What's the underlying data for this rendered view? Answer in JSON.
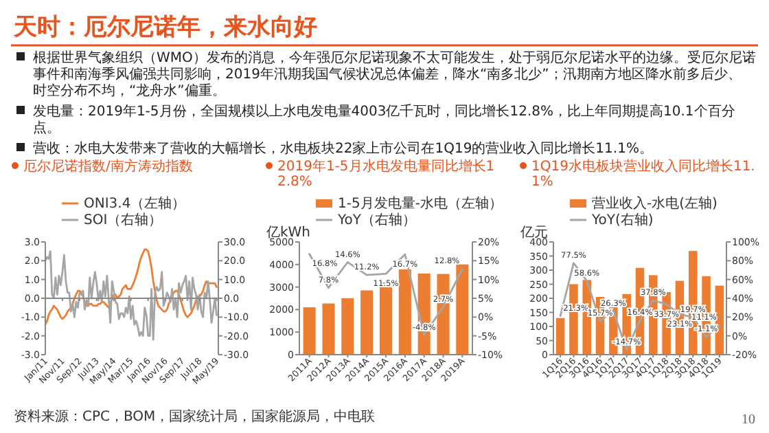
{
  "chart_data": [
    {
      "type": "other",
      "title": "天时：厄尔尼诺年，来水向好",
      "annotations": [
        "根据世界气象组织（WMO）发布的消息，今年强厄尔尼诺现象不太可能发生，处于弱厄尔尼诺水平的边缘。受厄尔尼诺事件和南海季风偏强共同影响，2019年汛期我国气候状况总体偏差，降水“南多北少”；汛期南方地区降水前多后少、时空分布不均，“龙舟水”偏重。",
        "发电量：2019年1-5月份，全国规模以上水电发电量4003亿千瓦时，同比增长12.8%，比上年同期提高10.1个百分点。",
        "营收：水电大发带来了营收的大幅增长，水电板块22家上市公司在1Q19的营业收入同比增长11.1%。",
        "10"
      ]
    },
    {
      "type": "line",
      "title": "厄尔尼诺指数/南方涛动指数",
      "legend": "top",
      "annotations": [
        "资料来源：CPC，BOM，国家统计局，国家能源局，中电联"
      ],
      "x": [
        "2011-01",
        "2011-02",
        "2011-03",
        "2011-04",
        "2011-05",
        "2011-06",
        "2011-07",
        "2011-08",
        "2011-09",
        "2011-10",
        "2011-11",
        "2011-12",
        "2012-01",
        "2012-02",
        "2012-03",
        "2012-04",
        "2012-05",
        "2012-06",
        "2012-07",
        "2012-08",
        "2012-09",
        "2012-10",
        "2012-11",
        "2012-12",
        "2013-01",
        "2013-02",
        "2013-03",
        "2013-04",
        "2013-05",
        "2013-06",
        "2013-07",
        "2013-08",
        "2013-09",
        "2013-10",
        "2013-11",
        "2013-12",
        "2014-01",
        "2014-02",
        "2014-03",
        "2014-04",
        "2014-05",
        "2014-06",
        "2014-07",
        "2014-08",
        "2014-09",
        "2014-10",
        "2014-11",
        "2014-12",
        "2015-01",
        "2015-02",
        "2015-03",
        "2015-04",
        "2015-05",
        "2015-06",
        "2015-07",
        "2015-08",
        "2015-09",
        "2015-10",
        "2015-11",
        "2015-12",
        "2016-01",
        "2016-02",
        "2016-03",
        "2016-04",
        "2016-05",
        "2016-06",
        "2016-07",
        "2016-08",
        "2016-09",
        "2016-10",
        "2016-11",
        "2016-12",
        "2017-01",
        "2017-02",
        "2017-03",
        "2017-04",
        "2017-05",
        "2017-06",
        "2017-07",
        "2017-08",
        "2017-09",
        "2017-10",
        "2017-11",
        "2017-12",
        "2018-01",
        "2018-02",
        "2018-03",
        "2018-04",
        "2018-05",
        "2018-06",
        "2018-07",
        "2018-08",
        "2018-09",
        "2018-10",
        "2018-11",
        "2018-12",
        "2019-01",
        "2019-02",
        "2019-03",
        "2019-04",
        "2019-05"
      ],
      "xlim": [
        "2011-01",
        "2019-06"
      ],
      "xticks": [
        {
          "value": "2011-01",
          "label": "Jan/11"
        },
        {
          "value": "2011-11",
          "label": "Nov/11"
        },
        {
          "value": "2012-09",
          "label": "Sep/12"
        },
        {
          "value": "2013-07",
          "label": "Jul/13"
        },
        {
          "value": "2014-05",
          "label": "May/14"
        },
        {
          "value": "2015-03",
          "label": "Mar/15"
        },
        {
          "value": "2016-01",
          "label": "Jan/16"
        },
        {
          "value": "2016-11",
          "label": "Nov/16"
        },
        {
          "value": "2017-09",
          "label": "Sep/17"
        },
        {
          "value": "2018-07",
          "label": "Jul/18"
        },
        {
          "value": "2019-05",
          "label": "May/19"
        }
      ],
      "ylim": [
        -3,
        3
      ],
      "yticks": [
        {
          "value": -3,
          "label": "-3.0"
        },
        {
          "value": -2,
          "label": "-2.0"
        },
        {
          "value": -1,
          "label": "-1.0"
        },
        {
          "value": 0,
          "label": "0.0"
        },
        {
          "value": 1,
          "label": "1.0"
        },
        {
          "value": 2,
          "label": "2.0"
        },
        {
          "value": 3,
          "label": "3.0"
        }
      ],
      "y2lim": [
        -30,
        30
      ],
      "y2ticks": [
        {
          "value": -30,
          "label": "-30.0"
        },
        {
          "value": -20,
          "label": "-20.0"
        },
        {
          "value": -10,
          "label": "-10.0"
        },
        {
          "value": 0,
          "label": "0.0"
        },
        {
          "value": 10,
          "label": "10.0"
        },
        {
          "value": 20,
          "label": "20.0"
        },
        {
          "value": 30,
          "label": "30.0"
        }
      ],
      "series": [
        {
          "name": "ONI3.4（左轴）",
          "color": "#ed7d31",
          "values": [
            -1.4,
            -1.2,
            -0.9,
            -0.7,
            -0.6,
            -0.4,
            -0.5,
            -0.6,
            -0.8,
            -1.0,
            -1.1,
            -1.0,
            -0.9,
            -0.7,
            -0.6,
            -0.5,
            -0.3,
            0.0,
            0.2,
            0.4,
            0.4,
            0.3,
            0.1,
            -0.2,
            -0.4,
            -0.4,
            -0.3,
            -0.3,
            -0.4,
            -0.4,
            -0.4,
            -0.3,
            -0.3,
            -0.2,
            -0.2,
            -0.3,
            -0.4,
            -0.5,
            -0.3,
            0.0,
            0.2,
            0.2,
            0.0,
            0.1,
            0.2,
            0.5,
            0.6,
            0.7,
            0.5,
            0.5,
            0.5,
            0.7,
            0.9,
            1.2,
            1.5,
            1.9,
            2.2,
            2.4,
            2.6,
            2.6,
            2.5,
            2.1,
            1.6,
            0.9,
            0.4,
            -0.1,
            -0.4,
            -0.5,
            -0.6,
            -0.7,
            -0.7,
            -0.6,
            -0.3,
            -0.1,
            0.1,
            0.3,
            0.4,
            0.4,
            0.2,
            -0.1,
            -0.4,
            -0.7,
            -0.9,
            -1.0,
            -0.9,
            -0.8,
            -0.6,
            -0.4,
            -0.1,
            0.1,
            0.1,
            0.2,
            0.4,
            0.7,
            0.9,
            0.8,
            0.8,
            0.8,
            0.8,
            0.8,
            0.6
          ]
        },
        {
          "name": "SOI（右轴）",
          "color": "#a5a5a5",
          "axis": "y2",
          "values": [
            20,
            22,
            21,
            25,
            2,
            0,
            11,
            2,
            12,
            7,
            14,
            23,
            9,
            3,
            3,
            -7,
            -3,
            -10,
            -2,
            -5,
            3,
            2,
            4,
            -6,
            -1,
            -4,
            11,
            0,
            8,
            14,
            8,
            -1,
            4,
            -2,
            9,
            1,
            12,
            -1,
            -13,
            9,
            4,
            -2,
            -3,
            -11,
            -8,
            -8,
            -10,
            -5,
            -8,
            1,
            -11,
            -4,
            -14,
            -12,
            -15,
            -20,
            -18,
            -20,
            -5,
            -9,
            -20,
            -20,
            5,
            -22,
            3,
            6,
            4,
            5,
            14,
            -4,
            -1,
            3,
            1,
            -2,
            5,
            -6,
            0,
            -10,
            8,
            3,
            7,
            9,
            12,
            -1,
            9,
            -6,
            11,
            5,
            2,
            -6,
            2,
            -7,
            -10,
            3,
            0,
            9,
            -1,
            -13,
            -7,
            0,
            -9
          ]
        }
      ]
    },
    {
      "type": "bar",
      "title": "2019年1-5月水电发电量同比增长12.8%",
      "legend": "top",
      "ylabel": "亿kWh",
      "categories": [
        "2011A",
        "2012A",
        "2013A",
        "2014A",
        "2015A",
        "2016A",
        "2017A",
        "2018A",
        "2019A"
      ],
      "ylim": [
        0,
        5000
      ],
      "yticks": [
        0,
        1000,
        2000,
        3000,
        4000,
        5000
      ],
      "y2lim": [
        -10,
        20
      ],
      "y2ticks": [
        {
          "value": -10,
          "label": "-10%"
        },
        {
          "value": -5,
          "label": "-5%"
        },
        {
          "value": 0,
          "label": "0%"
        },
        {
          "value": 5,
          "label": "5%"
        },
        {
          "value": 10,
          "label": "10%"
        },
        {
          "value": 15,
          "label": "15%"
        },
        {
          "value": 20,
          "label": "20%"
        }
      ],
      "series": [
        {
          "name": "1-5月发电量-水电（左轴）",
          "color": "#ed7d31",
          "values": [
            2100,
            2270,
            2500,
            2850,
            3200,
            3780,
            3600,
            3580,
            4003
          ]
        },
        {
          "name": "YoY（右轴）",
          "type": "line",
          "axis": "y2",
          "color": "#a5a5a5",
          "values": [
            16.8,
            7.8,
            14.6,
            11.2,
            11.5,
            16.7,
            -4.8,
            2.7,
            12.8
          ],
          "value_labels": [
            "16.8%",
            "7.8%",
            "14.6%",
            "11.2%",
            "11.5%",
            "16.7%",
            "-4.8%",
            "2.7%",
            "12.8%"
          ]
        }
      ]
    },
    {
      "type": "bar",
      "title": "1Q19水电板块营业收入同比增长11.1%",
      "legend": "top",
      "ylabel": "亿元",
      "categories": [
        "1Q16",
        "2Q16",
        "3Q16",
        "4Q16",
        "1Q17",
        "2Q17",
        "3Q17",
        "4Q17",
        "1Q18",
        "2Q18",
        "3Q18",
        "4Q18",
        "1Q19"
      ],
      "ylim": [
        0,
        400
      ],
      "yticks": [
        0,
        50,
        100,
        150,
        200,
        250,
        300,
        350,
        400
      ],
      "y2lim": [
        -20,
        100
      ],
      "y2ticks": [
        {
          "value": -20,
          "label": "-20%"
        },
        {
          "value": 0,
          "label": "0%"
        },
        {
          "value": 20,
          "label": "20%"
        },
        {
          "value": 40,
          "label": "40%"
        },
        {
          "value": 60,
          "label": "60%"
        },
        {
          "value": 80,
          "label": "80%"
        },
        {
          "value": 100,
          "label": "100%"
        }
      ],
      "series": [
        {
          "name": "营业收入-水电(左轴)",
          "color": "#ed7d31",
          "values": [
            130,
            250,
            265,
            205,
            168,
            215,
            308,
            282,
            222,
            262,
            368,
            278,
            245
          ]
        },
        {
          "name": "YoY(右轴)",
          "type": "line",
          "axis": "y2",
          "color": "#a5a5a5",
          "values": [
            21.3,
            77.5,
            58.6,
            15.7,
            26.3,
            -14.7,
            16.4,
            37.8,
            33.7,
            23.1,
            19.7,
            -1.1,
            11.1
          ],
          "value_labels": [
            "21.3%",
            "77.5%",
            "58.6%",
            "15.7%",
            "26.3%",
            "-14.7%",
            "16.4%",
            "37.8%",
            "33.7%",
            "23.1%",
            "19.7%",
            "-1.1%",
            "11.1%"
          ]
        }
      ]
    }
  ]
}
